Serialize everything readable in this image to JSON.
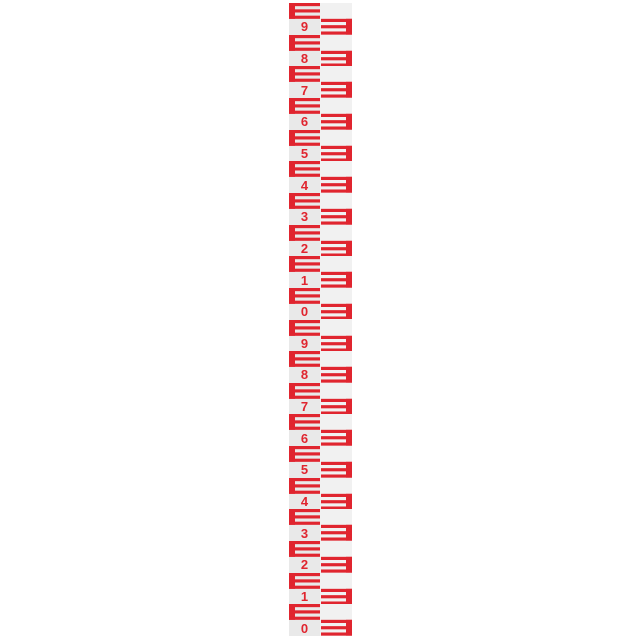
{
  "gauge": {
    "digits": [
      "9",
      "8",
      "7",
      "6",
      "5",
      "4",
      "3",
      "2",
      "1",
      "0",
      "9",
      "8",
      "7",
      "6",
      "5",
      "4",
      "3",
      "2",
      "1",
      "0"
    ],
    "color": "#e0252f",
    "background": "#e9e9e9"
  }
}
